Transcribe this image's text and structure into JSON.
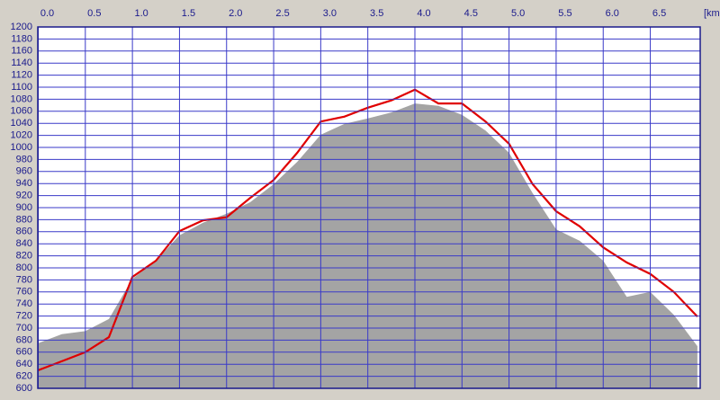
{
  "chart_data": {
    "type": "area",
    "x_label": "[km",
    "x": [
      0,
      0.25,
      0.5,
      0.75,
      1.0,
      1.25,
      1.5,
      1.75,
      2.0,
      2.25,
      2.5,
      2.75,
      3.0,
      3.25,
      3.5,
      3.75,
      4.0,
      4.25,
      4.5,
      4.75,
      5.0,
      5.25,
      5.5,
      5.75,
      6.0,
      6.25,
      6.5,
      6.75,
      7.0
    ],
    "series": [
      {
        "kind": "area",
        "color": "#a4a4a4",
        "values": [
          675,
          690,
          695,
          715,
          782,
          812,
          854,
          875,
          890,
          909,
          939,
          976,
          1021,
          1039,
          1048,
          1058,
          1073,
          1069,
          1054,
          1028,
          991,
          924,
          864,
          845,
          812,
          752,
          760,
          722,
          670
        ]
      },
      {
        "kind": "line",
        "color": "#e00000",
        "values": [
          630,
          645,
          660,
          685,
          785,
          812,
          861,
          879,
          884,
          916,
          946,
          991,
          1043,
          1051,
          1066,
          1078,
          1096,
          1073,
          1073,
          1043,
          1006,
          939,
          894,
          869,
          834,
          809,
          790,
          760,
          719
        ]
      }
    ],
    "xlim": [
      0,
      7.03
    ],
    "xticks": [
      {
        "value": 0,
        "label": "0.0"
      },
      0.5,
      {
        "value": 1,
        "label": "1.0"
      },
      1.5,
      {
        "value": 2,
        "label": "2.0"
      },
      2.5,
      {
        "value": 3,
        "label": "3.0"
      },
      3.5,
      {
        "value": 4,
        "label": "4.0"
      },
      4.5,
      {
        "value": 5,
        "label": "5.0"
      },
      5.5,
      {
        "value": 6,
        "label": "6.0"
      },
      6.5
    ],
    "ylim": [
      600,
      1200
    ],
    "yticks": [
      600,
      620,
      640,
      660,
      680,
      700,
      720,
      740,
      760,
      780,
      800,
      820,
      840,
      860,
      880,
      900,
      920,
      940,
      960,
      980,
      1000,
      1020,
      1040,
      1060,
      1080,
      1100,
      1120,
      1140,
      1160,
      1180,
      1200
    ],
    "grid": true
  }
}
